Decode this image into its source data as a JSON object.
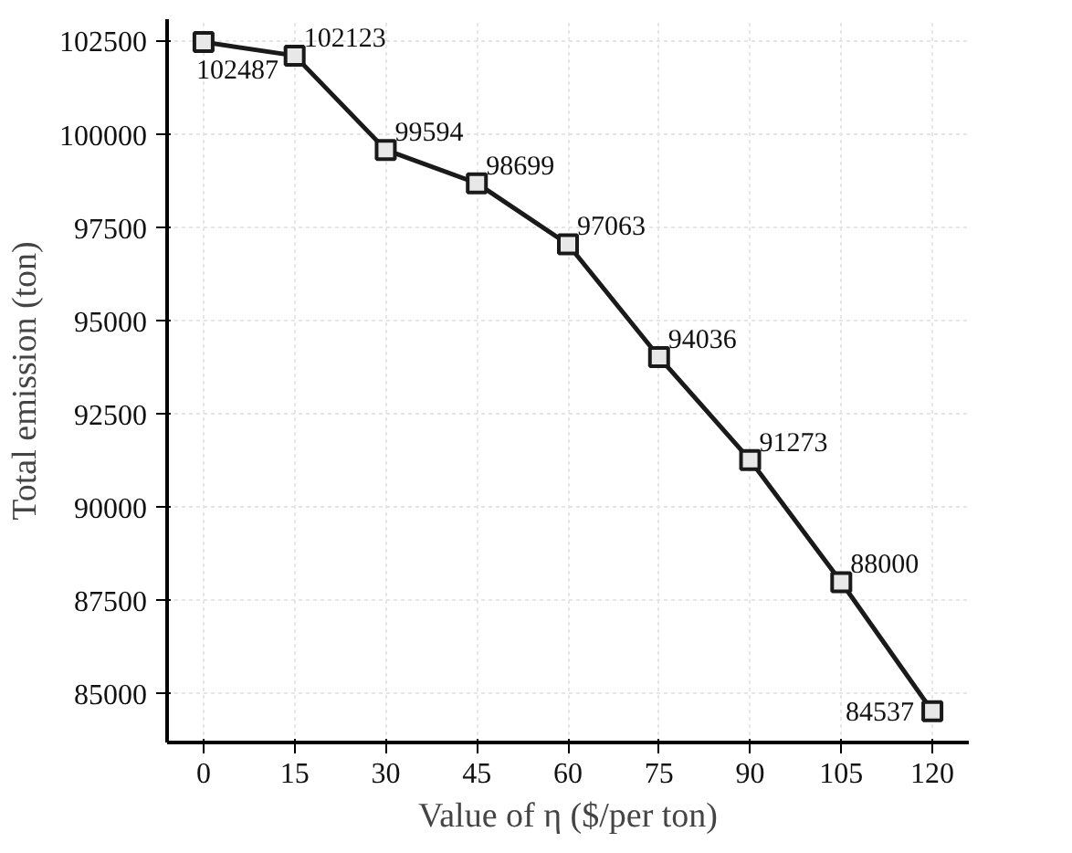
{
  "chart_data": {
    "type": "line",
    "xlabel": "Value of η ($/per ton)",
    "ylabel": "Total emission (ton)",
    "x": [
      0,
      15,
      30,
      45,
      60,
      75,
      90,
      105,
      120
    ],
    "series": [
      {
        "color": "#1a1a1a",
        "values": [
          102487,
          102123,
          99594,
          98699,
          97063,
          94036,
          91273,
          88000,
          84537
        ]
      }
    ],
    "xlim": [
      -6,
      126
    ],
    "xticks": [
      0,
      15,
      30,
      45,
      60,
      75,
      90,
      105,
      120
    ],
    "ylim": [
      83700,
      103100
    ],
    "yticks": [
      85000,
      87500,
      90000,
      92500,
      95000,
      97500,
      100000,
      102500
    ],
    "grid": true,
    "marker": "square",
    "line_style": "solid",
    "data_labels": true
  }
}
